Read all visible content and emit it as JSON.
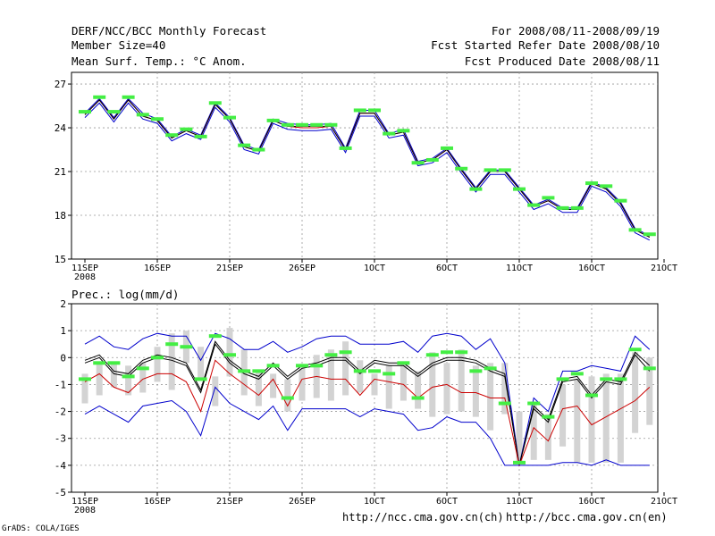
{
  "header": {
    "title": "DERF/NCC/BCC Monthly Forecast",
    "member": "Member Size=40",
    "variable": "Mean Surf. Temp.: °C Anom.",
    "period": "For 2008/08/11-2008/09/19",
    "started": "Fcst Started Refer Date 2008/08/10",
    "produced": "Fcst Produced Date 2008/08/11"
  },
  "footer": {
    "grads": "GrADS: COLA/IGES",
    "url_ncc": "http://ncc.cma.gov.cn(ch)",
    "url_bcc": "http://bcc.cma.gov.cn(en)"
  },
  "colors": {
    "temp_upper": "#0000cc",
    "temp_lower": "#0000cc",
    "temp_mid": "#cc0000",
    "temp_mean": "#000000",
    "prec_max": "#0000cc",
    "prec_min": "#0000cc",
    "prec_mean": "#000000",
    "prec_low": "#cc0000",
    "bar": "#d3d3d3",
    "marker": "#44ee44"
  },
  "chart_data": [
    {
      "type": "line",
      "title": "Mean Surf. Temp.: °C Anom.",
      "xlabel": "",
      "ylabel": "",
      "x_tick_labels": [
        "11SEP",
        "16SEP",
        "21SEP",
        "26SEP",
        "1OCT",
        "6OCT",
        "11OCT",
        "16OCT",
        "21OCT"
      ],
      "x_tick_year": "2008",
      "x_range_days": [
        0,
        40
      ],
      "yticks": [
        15,
        18,
        21,
        24,
        27
      ],
      "ylim": [
        15,
        27.8
      ],
      "grid": true,
      "series": [
        {
          "name": "upper",
          "values": [
            25.0,
            26.0,
            24.7,
            26.0,
            25.0,
            24.6,
            23.4,
            23.9,
            23.5,
            25.7,
            24.7,
            22.8,
            22.5,
            24.6,
            24.3,
            24.2,
            24.2,
            24.3,
            22.6,
            25.2,
            25.2,
            23.6,
            23.9,
            21.7,
            21.9,
            22.6,
            21.2,
            19.9,
            21.1,
            21.1,
            19.9,
            18.7,
            19.1,
            18.5,
            18.5,
            20.3,
            19.9,
            18.9,
            17.1,
            16.6
          ]
        },
        {
          "name": "mid",
          "values": [
            24.9,
            25.9,
            24.6,
            25.9,
            24.8,
            24.5,
            23.3,
            23.8,
            23.4,
            25.6,
            24.6,
            22.7,
            22.4,
            24.5,
            24.1,
            24.0,
            24.0,
            24.1,
            22.5,
            25.0,
            25.0,
            23.5,
            23.7,
            21.6,
            21.8,
            22.5,
            21.1,
            19.8,
            21.0,
            21.0,
            19.8,
            18.6,
            19.0,
            18.4,
            18.4,
            20.2,
            19.8,
            18.8,
            17.0,
            16.5
          ]
        },
        {
          "name": "mean",
          "values": [
            24.9,
            25.9,
            24.6,
            25.9,
            24.8,
            24.5,
            23.3,
            23.8,
            23.4,
            25.6,
            24.6,
            22.7,
            22.4,
            24.5,
            24.1,
            24.1,
            24.1,
            24.1,
            22.5,
            25.0,
            25.0,
            23.5,
            23.7,
            21.6,
            21.8,
            22.5,
            21.1,
            19.8,
            21.0,
            21.0,
            19.8,
            18.6,
            19.0,
            18.4,
            18.4,
            20.2,
            19.8,
            18.8,
            17.0,
            16.5
          ]
        },
        {
          "name": "lower",
          "values": [
            24.7,
            25.7,
            24.4,
            25.7,
            24.6,
            24.3,
            23.1,
            23.6,
            23.2,
            25.4,
            24.4,
            22.5,
            22.2,
            24.3,
            23.9,
            23.8,
            23.8,
            23.9,
            22.3,
            24.8,
            24.8,
            23.3,
            23.5,
            21.4,
            21.6,
            22.3,
            20.9,
            19.6,
            20.8,
            20.8,
            19.6,
            18.4,
            18.8,
            18.2,
            18.2,
            20.0,
            19.6,
            18.6,
            16.8,
            16.3
          ]
        },
        {
          "name": "obs",
          "values": [
            25.1,
            26.1,
            25.1,
            26.1,
            24.9,
            24.6,
            23.5,
            23.9,
            23.4,
            25.7,
            24.7,
            22.8,
            22.5,
            24.5,
            24.2,
            24.2,
            24.2,
            24.2,
            22.6,
            25.2,
            25.2,
            23.6,
            23.8,
            21.6,
            21.8,
            22.6,
            21.2,
            19.8,
            21.1,
            21.1,
            19.8,
            18.7,
            19.2,
            18.5,
            18.5,
            20.2,
            20.0,
            19.0,
            17.0,
            16.7
          ]
        }
      ]
    },
    {
      "type": "line",
      "title": "Prec.: log(mm/d)",
      "xlabel": "",
      "ylabel": "",
      "x_tick_labels": [
        "11SEP",
        "16SEP",
        "21SEP",
        "26SEP",
        "1OCT",
        "6OCT",
        "11OCT",
        "16OCT",
        "21OCT"
      ],
      "x_tick_year": "2008",
      "x_range_days": [
        0,
        40
      ],
      "yticks": [
        -5,
        -4,
        -3,
        -2,
        -1,
        0,
        1,
        2
      ],
      "ylim": [
        -5,
        2
      ],
      "grid": true,
      "bars": {
        "low": [
          -1.7,
          -1.4,
          -1.1,
          -1.4,
          -1.3,
          -0.9,
          -1.2,
          -0.2,
          -0.8,
          -1.8,
          -0.7,
          -1.4,
          -1.8,
          -1.5,
          -2.0,
          -1.6,
          -1.5,
          -1.6,
          -1.4,
          -1.3,
          -1.4,
          -1.9,
          -1.6,
          -1.9,
          -2.2,
          -2.1,
          -2.0,
          -2.2,
          -2.7,
          -2.1,
          -3.9,
          -3.8,
          -3.8,
          -3.3,
          -3.9,
          -3.9,
          -3.9,
          -3.9,
          -2.8,
          -2.5
        ],
        "high": [
          -0.6,
          -0.2,
          -0.2,
          -0.3,
          -0.2,
          0.4,
          0.9,
          1.0,
          0.4,
          -0.7,
          1.1,
          0.3,
          -0.5,
          -0.6,
          -0.8,
          -0.4,
          0.1,
          0.3,
          0.6,
          -0.1,
          -0.6,
          -0.3,
          -0.2,
          -0.5,
          0.2,
          -0.2,
          0.3,
          -0.3,
          -0.2,
          -0.2,
          -2.0,
          -1.7,
          -2.1,
          -1.0,
          -0.8,
          -0.7,
          -0.6,
          -0.6,
          0.2,
          0.0
        ]
      },
      "series": [
        {
          "name": "max",
          "values": [
            0.5,
            0.8,
            0.4,
            0.3,
            0.7,
            0.9,
            0.8,
            0.8,
            -0.1,
            0.9,
            0.7,
            0.3,
            0.3,
            0.6,
            0.2,
            0.4,
            0.7,
            0.8,
            0.8,
            0.5,
            0.5,
            0.5,
            0.6,
            0.2,
            0.8,
            0.9,
            0.8,
            0.3,
            0.7,
            -0.2,
            -4.0,
            -1.5,
            -2.0,
            -0.5,
            -0.5,
            -0.3,
            -0.4,
            -0.5,
            0.8,
            0.3
          ]
        },
        {
          "name": "mean",
          "values": [
            -0.1,
            0.1,
            -0.5,
            -0.6,
            -0.1,
            0.1,
            0.0,
            -0.2,
            -1.2,
            0.6,
            -0.1,
            -0.5,
            -0.7,
            -0.2,
            -0.7,
            -0.3,
            -0.2,
            0.0,
            0.0,
            -0.5,
            -0.1,
            -0.2,
            -0.2,
            -0.6,
            -0.2,
            0.0,
            0.0,
            -0.1,
            -0.4,
            -0.6,
            -4.0,
            -1.8,
            -2.3,
            -0.8,
            -0.7,
            -1.4,
            -0.8,
            -0.9,
            0.2,
            -0.3
          ]
        },
        {
          "name": "mean2",
          "values": [
            -0.2,
            0.0,
            -0.6,
            -0.7,
            -0.2,
            0.0,
            -0.1,
            -0.3,
            -1.3,
            0.5,
            -0.2,
            -0.6,
            -0.8,
            -0.3,
            -0.8,
            -0.4,
            -0.3,
            -0.1,
            -0.1,
            -0.6,
            -0.2,
            -0.3,
            -0.3,
            -0.7,
            -0.3,
            -0.1,
            -0.1,
            -0.2,
            -0.5,
            -0.7,
            -4.0,
            -1.9,
            -2.4,
            -0.9,
            -0.8,
            -1.5,
            -0.9,
            -1.0,
            0.1,
            -0.5
          ]
        },
        {
          "name": "low",
          "values": [
            -0.9,
            -0.6,
            -1.1,
            -1.3,
            -0.8,
            -0.6,
            -0.6,
            -0.9,
            -2.0,
            -0.1,
            -0.6,
            -1.0,
            -1.4,
            -0.8,
            -1.8,
            -0.8,
            -0.7,
            -0.8,
            -0.8,
            -1.4,
            -0.8,
            -0.9,
            -1.0,
            -1.5,
            -1.1,
            -1.0,
            -1.3,
            -1.3,
            -1.5,
            -1.5,
            -4.0,
            -2.6,
            -3.1,
            -1.9,
            -1.8,
            -2.5,
            -2.2,
            -1.9,
            -1.6,
            -1.1
          ]
        },
        {
          "name": "min",
          "values": [
            -2.1,
            -1.8,
            -2.1,
            -2.4,
            -1.8,
            -1.7,
            -1.6,
            -2.0,
            -2.9,
            -1.1,
            -1.7,
            -2.0,
            -2.3,
            -1.8,
            -2.7,
            -1.9,
            -1.9,
            -1.9,
            -1.9,
            -2.2,
            -1.9,
            -2.0,
            -2.1,
            -2.7,
            -2.6,
            -2.2,
            -2.4,
            -2.4,
            -3.0,
            -4.0,
            -4.0,
            -4.0,
            -4.0,
            -3.9,
            -3.9,
            -4.0,
            -3.8,
            -4.0,
            -4.0,
            -4.0
          ]
        },
        {
          "name": "obs",
          "values": [
            -0.8,
            -0.2,
            -0.2,
            -0.7,
            -0.4,
            0.0,
            0.5,
            0.4,
            -0.8,
            0.8,
            0.1,
            -0.5,
            -0.5,
            -0.3,
            -1.5,
            -0.3,
            -0.3,
            0.1,
            0.2,
            -0.5,
            -0.5,
            -0.6,
            -0.2,
            -1.5,
            0.1,
            0.2,
            0.2,
            -0.5,
            -0.4,
            -1.7,
            -3.9,
            -1.7,
            -2.2,
            -0.8,
            -0.6,
            -1.4,
            -0.8,
            -0.8,
            0.3,
            -0.4
          ]
        }
      ]
    }
  ]
}
